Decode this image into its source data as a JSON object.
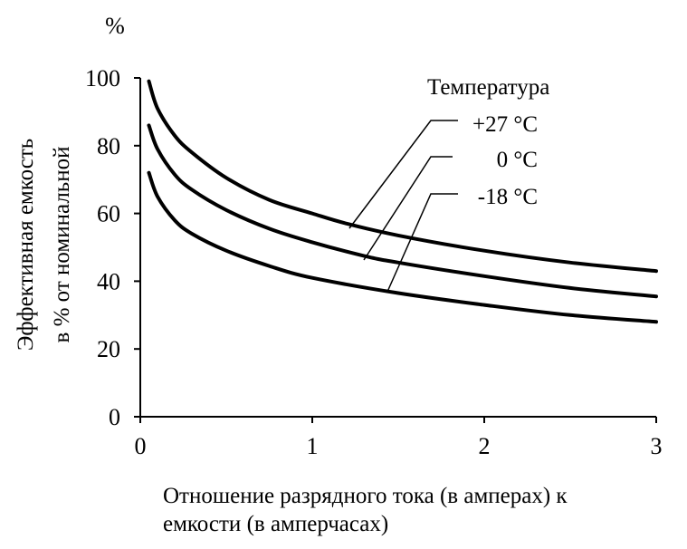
{
  "chart_data": {
    "type": "line",
    "unit_label": "%",
    "ylabel_line1": "Эффективная емкость",
    "ylabel_line2": "в % от номинальной",
    "xlabel_line1": "Отношение разрядного тока (в амперах) к",
    "xlabel_line2": "емкости (в амперчасах)",
    "legend_title": "Температура",
    "xlim": [
      0,
      3
    ],
    "ylim": [
      0,
      100
    ],
    "x_ticks": [
      0,
      1,
      2,
      3
    ],
    "y_ticks": [
      0,
      20,
      40,
      60,
      80,
      100
    ],
    "grid": false,
    "legend_position": "top-right",
    "series": [
      {
        "name": "+27 °C",
        "x": [
          0.05,
          0.1,
          0.2,
          0.3,
          0.5,
          0.75,
          1.0,
          1.2,
          1.5,
          2.0,
          2.5,
          3.0
        ],
        "y": [
          99,
          91,
          83,
          78,
          70.5,
          64,
          60,
          57,
          53.5,
          49,
          45.5,
          43
        ]
      },
      {
        "name": "0 °C",
        "x": [
          0.05,
          0.1,
          0.2,
          0.3,
          0.5,
          0.75,
          1.0,
          1.3,
          1.5,
          2.0,
          2.5,
          3.0
        ],
        "y": [
          86,
          79,
          71.5,
          67,
          61,
          55.5,
          51.5,
          47.5,
          45.5,
          41.5,
          38,
          35.5
        ]
      },
      {
        "name": "-18 °C",
        "x": [
          0.05,
          0.1,
          0.2,
          0.3,
          0.5,
          0.75,
          1.0,
          1.5,
          2.0,
          2.5,
          3.0
        ],
        "y": [
          72,
          65,
          58,
          54,
          49,
          44.5,
          41,
          36.5,
          33,
          30,
          28
        ]
      }
    ]
  }
}
